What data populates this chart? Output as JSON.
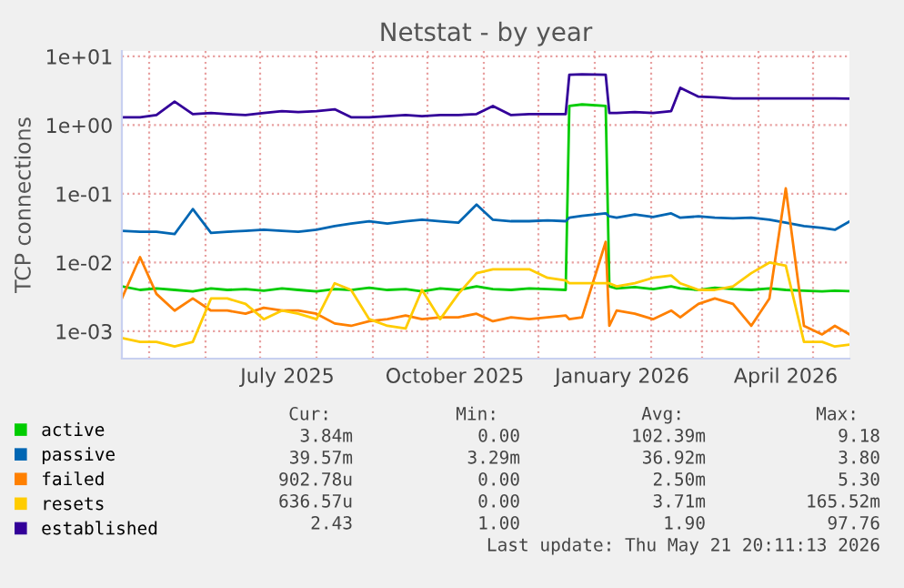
{
  "chart_data": {
    "type": "line",
    "title": "Netstat - by year",
    "ylabel": "TCP connections",
    "log": "y",
    "grid": true,
    "legend": "bottom",
    "marker": "none",
    "line_style": "solid",
    "x": [
      "2025-04-16",
      "2025-04-26",
      "2025-05-05",
      "2025-05-15",
      "2025-05-25",
      "2025-06-04",
      "2025-06-13",
      "2025-06-23",
      "2025-07-03",
      "2025-07-13",
      "2025-07-22",
      "2025-08-01",
      "2025-08-11",
      "2025-08-20",
      "2025-08-30",
      "2025-09-09",
      "2025-09-19",
      "2025-09-28",
      "2025-10-08",
      "2025-10-18",
      "2025-10-28",
      "2025-11-06",
      "2025-11-16",
      "2025-11-26",
      "2025-12-06",
      "2025-12-16",
      "2025-12-18",
      "2025-12-25",
      "2026-01-07",
      "2026-01-09",
      "2026-01-13",
      "2026-01-23",
      "2026-02-02",
      "2026-02-12",
      "2026-02-17",
      "2026-02-27",
      "2026-03-08",
      "2026-03-18",
      "2026-03-28",
      "2026-04-07",
      "2026-04-16",
      "2026-04-26",
      "2026-05-06",
      "2026-05-13",
      "2026-05-21"
    ],
    "xlim": [
      "2025-04-16",
      "2026-05-21"
    ],
    "xticks": [
      {
        "value": "2025-05-01",
        "label": null
      },
      {
        "value": "2025-06-01",
        "label": null
      },
      {
        "value": "2025-07-01",
        "label": null
      },
      {
        "value": "2025-07-16",
        "label": "July 2025"
      },
      {
        "value": "2025-08-01",
        "label": null
      },
      {
        "value": "2025-09-01",
        "label": null
      },
      {
        "value": "2025-10-01",
        "label": null
      },
      {
        "value": "2025-10-16",
        "label": "October 2025"
      },
      {
        "value": "2025-11-01",
        "label": null
      },
      {
        "value": "2025-12-01",
        "label": null
      },
      {
        "value": "2026-01-01",
        "label": null
      },
      {
        "value": "2026-01-16",
        "label": "January 2026"
      },
      {
        "value": "2026-02-01",
        "label": null
      },
      {
        "value": "2026-03-01",
        "label": null
      },
      {
        "value": "2026-04-01",
        "label": null
      },
      {
        "value": "2026-04-16",
        "label": "April 2026"
      },
      {
        "value": "2026-05-01",
        "label": null
      }
    ],
    "ylim": [
      0.0004,
      12
    ],
    "yticks": [
      {
        "value": 0.001,
        "label": "1e-03"
      },
      {
        "value": 0.01,
        "label": "1e-02"
      },
      {
        "value": 0.1,
        "label": "1e-01"
      },
      {
        "value": 1,
        "label": "1e+00"
      },
      {
        "value": 10,
        "label": "1e+01"
      }
    ],
    "series": [
      {
        "name": "active",
        "color": "#00cc00",
        "values": [
          0.0045,
          0.004,
          0.0042,
          0.004,
          0.0038,
          0.0042,
          0.004,
          0.0041,
          0.0039,
          0.0042,
          0.004,
          0.0038,
          0.0041,
          0.004,
          0.0043,
          0.004,
          0.0041,
          0.0038,
          0.0042,
          0.004,
          0.0045,
          0.0041,
          0.004,
          0.0042,
          0.0041,
          0.004,
          1.9,
          2.0,
          1.9,
          0.0045,
          0.0042,
          0.0044,
          0.0041,
          0.0045,
          0.0042,
          0.004,
          0.0043,
          0.0041,
          0.004,
          0.0042,
          0.004,
          0.0039,
          0.0038,
          0.0039,
          0.00384
        ]
      },
      {
        "name": "passive",
        "color": "#0066b3",
        "values": [
          0.029,
          0.028,
          0.028,
          0.026,
          0.06,
          0.027,
          0.028,
          0.029,
          0.03,
          0.029,
          0.028,
          0.03,
          0.034,
          0.037,
          0.04,
          0.037,
          0.04,
          0.042,
          0.04,
          0.038,
          0.07,
          0.042,
          0.04,
          0.04,
          0.041,
          0.04,
          0.045,
          0.048,
          0.052,
          0.047,
          0.045,
          0.05,
          0.046,
          0.052,
          0.045,
          0.047,
          0.045,
          0.044,
          0.045,
          0.042,
          0.038,
          0.034,
          0.032,
          0.03,
          0.0396
        ]
      },
      {
        "name": "failed",
        "color": "#ff8000",
        "values": [
          0.003,
          0.012,
          0.0035,
          0.002,
          0.003,
          0.002,
          0.002,
          0.0018,
          0.0022,
          0.002,
          0.002,
          0.0018,
          0.0013,
          0.0012,
          0.0014,
          0.0015,
          0.0017,
          0.0015,
          0.0016,
          0.0016,
          0.0018,
          0.0014,
          0.0016,
          0.0015,
          0.0016,
          0.0017,
          0.0015,
          0.0016,
          0.02,
          0.0012,
          0.002,
          0.0018,
          0.0015,
          0.002,
          0.0016,
          0.0025,
          0.003,
          0.0025,
          0.0012,
          0.003,
          0.12,
          0.0012,
          0.0009,
          0.0012,
          0.0009
        ]
      },
      {
        "name": "resets",
        "color": "#ffcc00",
        "values": [
          0.0008,
          0.0007,
          0.0007,
          0.0006,
          0.0007,
          0.003,
          0.003,
          0.0025,
          0.0015,
          0.002,
          0.0018,
          0.0015,
          0.005,
          0.004,
          0.0015,
          0.0012,
          0.0011,
          0.004,
          0.0015,
          0.0035,
          0.007,
          0.008,
          0.008,
          0.008,
          0.006,
          0.0055,
          0.005,
          0.005,
          0.005,
          0.005,
          0.0045,
          0.005,
          0.006,
          0.0065,
          0.005,
          0.004,
          0.004,
          0.0045,
          0.007,
          0.01,
          0.009,
          0.0007,
          0.0007,
          0.0006,
          0.00064
        ]
      },
      {
        "name": "established",
        "color": "#330099",
        "values": [
          1.3,
          1.3,
          1.4,
          2.2,
          1.45,
          1.5,
          1.45,
          1.4,
          1.5,
          1.6,
          1.55,
          1.6,
          1.7,
          1.3,
          1.3,
          1.35,
          1.4,
          1.35,
          1.4,
          1.4,
          1.45,
          1.9,
          1.4,
          1.45,
          1.45,
          1.45,
          5.4,
          5.5,
          5.4,
          1.5,
          1.5,
          1.55,
          1.5,
          1.6,
          3.5,
          2.6,
          2.55,
          2.45,
          2.45,
          2.45,
          2.45,
          2.45,
          2.45,
          2.45,
          2.43
        ]
      }
    ],
    "annotations": [
      "Cur:",
      "Min:",
      "Avg:",
      "Max:",
      "3.84m",
      "0.00",
      "102.39m",
      "9.18",
      "39.57m",
      "3.29m",
      "36.92m",
      "3.80",
      "902.78u",
      "0.00",
      "2.50m",
      "5.30",
      "636.57u",
      "0.00",
      "3.71m",
      "165.52m",
      "2.43",
      "1.00",
      "1.90",
      "97.76",
      "Last update: Thu May 21 20:11:13 2026"
    ]
  }
}
